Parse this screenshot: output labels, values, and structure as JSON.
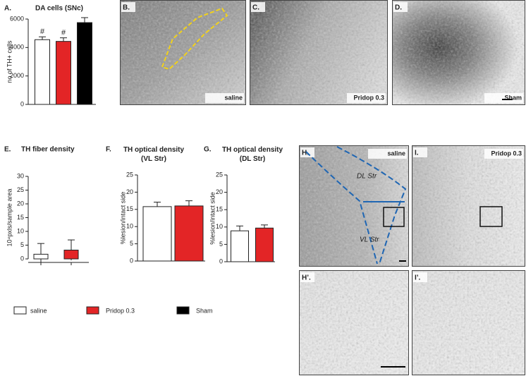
{
  "chart_data": [
    {
      "type": "bar",
      "panel": "A.",
      "title": "DA cells (SNc)",
      "ylabel": "no of TH+ cells",
      "values": [
        4550,
        4430,
        5750
      ],
      "errors": [
        200,
        250,
        350
      ],
      "colors": [
        "#ffffff",
        "#e32526",
        "#000000"
      ],
      "annotations": [
        "#",
        "#",
        null
      ],
      "ylim": [
        0,
        6000
      ],
      "yticks": [
        0,
        2000,
        4000,
        6000
      ]
    },
    {
      "type": "bar",
      "panel": "E.",
      "title": "TH fiber density",
      "ylabel": "10⁴pxls/sample area",
      "values": [
        1.7,
        3.2
      ],
      "errors": [
        3.9,
        3.7
      ],
      "colors": [
        "#ffffff",
        "#e32526"
      ],
      "ylim": [
        0,
        30
      ],
      "yticks": [
        0,
        5,
        10,
        15,
        20,
        25,
        30
      ]
    },
    {
      "type": "bar",
      "panel": "F.",
      "title": "TH optical density (VL Str)",
      "ylabel": "%lesion/intact side",
      "values": [
        15.8,
        16.0
      ],
      "errors": [
        1.3,
        1.5
      ],
      "colors": [
        "#ffffff",
        "#e32526"
      ],
      "ylim": [
        0,
        25
      ],
      "yticks": [
        0,
        5,
        10,
        15,
        20,
        25
      ]
    },
    {
      "type": "bar",
      "panel": "G.",
      "title": "TH optical density (DL Str)",
      "ylabel": "%lesion/intact side",
      "values": [
        8.9,
        9.7
      ],
      "errors": [
        1.4,
        0.9
      ],
      "colors": [
        "#ffffff",
        "#e32526"
      ],
      "ylim": [
        0,
        25
      ],
      "yticks": [
        0,
        5,
        10,
        15,
        20,
        25
      ]
    }
  ],
  "legend": [
    {
      "name": "saline",
      "color": "#ffffff"
    },
    {
      "name": "Pridop 0.3",
      "color": "#e32526"
    },
    {
      "name": "Sham",
      "color": "#000000"
    }
  ],
  "images": [
    {
      "panel": "B.",
      "caption": "saline"
    },
    {
      "panel": "C.",
      "caption": "Pridop 0.3"
    },
    {
      "panel": "D.",
      "caption": "Sham"
    },
    {
      "panel": "H.",
      "caption": "saline",
      "regions": [
        "DL Str",
        "VL Str"
      ]
    },
    {
      "panel": "I.",
      "caption": "Pridop 0.3"
    },
    {
      "panel": "H’.",
      "caption": null
    },
    {
      "panel": "I’.",
      "caption": null
    }
  ]
}
